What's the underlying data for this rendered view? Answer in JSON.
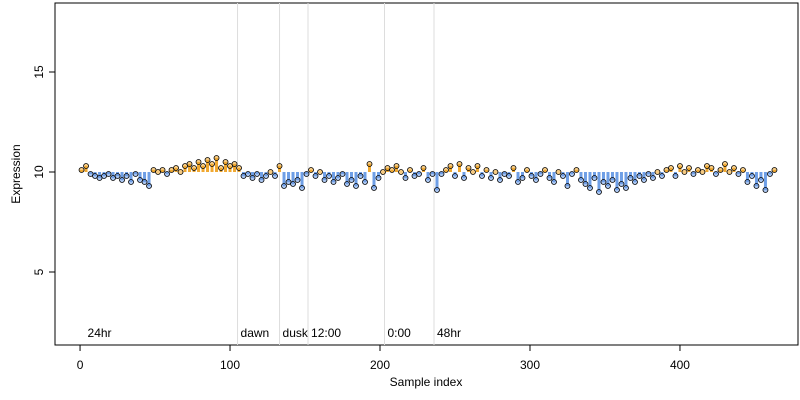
{
  "chart_data": {
    "type": "scatter",
    "x_label": "Sample index",
    "y_label": "Expression",
    "x": [
      1,
      4,
      7,
      10,
      13,
      16,
      19,
      22,
      25,
      28,
      31,
      34,
      37,
      40,
      43,
      46,
      49,
      52,
      55,
      58,
      61,
      64,
      67,
      70,
      73,
      76,
      79,
      82,
      85,
      88,
      91,
      94,
      97,
      100,
      103,
      106,
      109,
      112,
      115,
      118,
      121,
      124,
      127,
      130,
      133,
      136,
      139,
      142,
      145,
      148,
      151,
      154,
      157,
      160,
      163,
      166,
      169,
      172,
      175,
      178,
      181,
      184,
      187,
      190,
      193,
      196,
      199,
      202,
      205,
      208,
      211,
      214,
      217,
      220,
      223,
      226,
      229,
      232,
      235,
      238,
      241,
      244,
      247,
      250,
      253,
      256,
      259,
      262,
      265,
      268,
      271,
      274,
      277,
      280,
      283,
      286,
      289,
      292,
      295,
      298,
      301,
      304,
      307,
      310,
      313,
      316,
      319,
      322,
      325,
      328,
      331,
      334,
      337,
      340,
      343,
      346,
      349,
      352,
      355,
      358,
      361,
      364,
      367,
      370,
      373,
      376,
      379,
      382,
      385,
      388,
      391,
      394,
      397,
      400,
      403,
      406,
      409,
      412,
      415,
      418,
      421,
      424,
      427,
      430,
      433,
      436,
      439,
      442,
      445,
      448,
      451,
      454,
      457,
      460,
      463
    ],
    "values": [
      10.1,
      10.3,
      9.9,
      9.8,
      9.7,
      9.8,
      9.9,
      9.7,
      9.8,
      9.6,
      9.8,
      9.5,
      9.9,
      9.6,
      9.5,
      9.3,
      10.1,
      10.0,
      10.1,
      9.9,
      10.1,
      10.2,
      10.0,
      10.3,
      10.4,
      10.2,
      10.5,
      10.3,
      10.6,
      10.4,
      10.7,
      10.2,
      10.5,
      10.3,
      10.4,
      10.2,
      9.8,
      9.9,
      9.7,
      9.9,
      9.6,
      9.8,
      10.0,
      9.8,
      10.3,
      9.3,
      9.5,
      9.4,
      9.6,
      9.2,
      9.9,
      10.1,
      9.8,
      10.0,
      9.6,
      9.8,
      9.5,
      9.7,
      9.9,
      9.4,
      9.6,
      9.3,
      9.8,
      9.5,
      10.4,
      9.2,
      9.7,
      10.0,
      10.2,
      10.1,
      10.3,
      10.0,
      9.7,
      10.1,
      9.8,
      9.9,
      10.2,
      9.6,
      9.9,
      9.1,
      9.9,
      10.1,
      10.3,
      9.8,
      10.4,
      9.7,
      10.2,
      10.0,
      10.3,
      9.8,
      10.1,
      9.7,
      10.0,
      9.6,
      9.9,
      9.8,
      10.2,
      9.5,
      9.7,
      10.1,
      9.8,
      9.6,
      9.9,
      10.1,
      9.7,
      9.5,
      10.0,
      9.8,
      9.3,
      9.9,
      10.1,
      9.6,
      9.4,
      9.2,
      9.7,
      9.0,
      9.5,
      9.3,
      9.6,
      9.1,
      9.4,
      9.2,
      9.7,
      9.5,
      9.8,
      9.6,
      9.9,
      9.7,
      10.0,
      9.8,
      10.1,
      10.2,
      9.8,
      10.3,
      10.0,
      10.2,
      9.9,
      10.1,
      10.0,
      10.3,
      10.2,
      9.9,
      10.1,
      10.4,
      10.0,
      10.2,
      9.9,
      10.1,
      9.5,
      9.8,
      9.3,
      9.6,
      9.1,
      9.9,
      10.1
    ],
    "baseline": 10,
    "color_above": "#f0a830",
    "color_below": "#6f9fe6",
    "annotations": [
      {
        "x": 3,
        "label": "24hr"
      },
      {
        "x": 105,
        "label": "dawn"
      },
      {
        "x": 133,
        "label": "dusk"
      },
      {
        "x": 152,
        "label": "12:00"
      },
      {
        "x": 203,
        "label": "0:00"
      },
      {
        "x": 236,
        "label": "48hr"
      }
    ],
    "xlim": [
      -16.7,
      478.7
    ],
    "ylim": [
      1.35,
      18.45
    ],
    "xticks": [
      0,
      100,
      200,
      300,
      400
    ],
    "yticks": [
      5,
      10,
      15
    ]
  }
}
